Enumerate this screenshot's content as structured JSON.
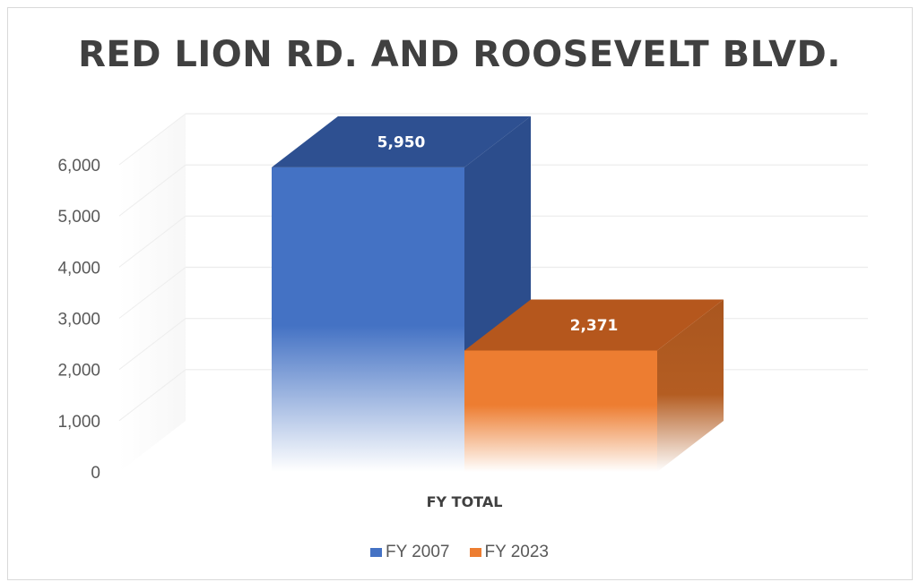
{
  "chart_data": {
    "type": "bar",
    "title": "RED LION RD. AND ROOSEVELT BLVD.",
    "categories": [
      "FY TOTAL"
    ],
    "series": [
      {
        "name": "FY 2007",
        "values": [
          5950
        ],
        "label": "5,950",
        "color": "#4472c4"
      },
      {
        "name": "FY 2023",
        "values": [
          2371
        ],
        "label": "2,371",
        "color": "#ed7d31"
      }
    ],
    "ylim": [
      0,
      6000
    ],
    "yticks": [
      "0",
      "1,000",
      "2,000",
      "3,000",
      "4,000",
      "5,000",
      "6,000"
    ],
    "grid": true,
    "legend_position": "bottom"
  }
}
